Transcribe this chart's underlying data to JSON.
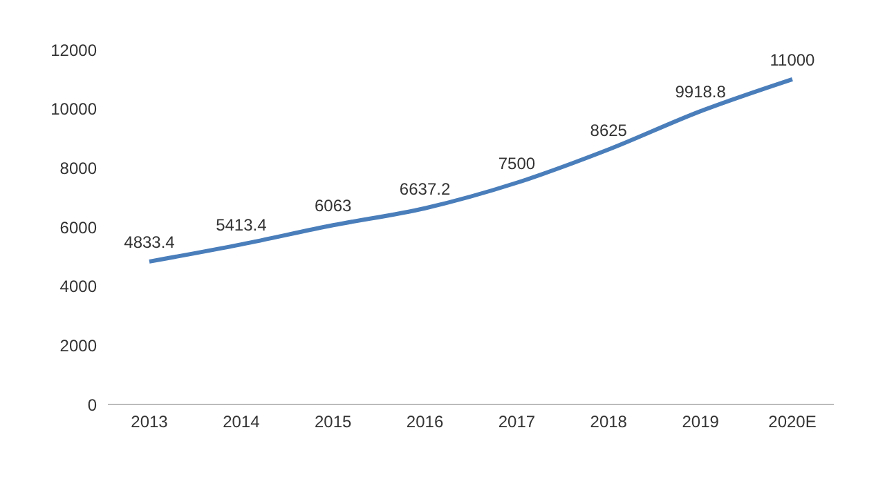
{
  "chart_data": {
    "type": "line",
    "categories": [
      "2013",
      "2014",
      "2015",
      "2016",
      "2017",
      "2018",
      "2019",
      "2020E"
    ],
    "series": [
      {
        "color": "#4a7ebb",
        "values": [
          4833.4,
          5413.4,
          6063,
          6637.2,
          7500,
          8625,
          9918.8,
          11000
        ]
      }
    ],
    "ylim": [
      0,
      12000
    ],
    "yticks": [
      0,
      2000,
      4000,
      6000,
      8000,
      10000,
      12000
    ],
    "grid": false,
    "legend": false,
    "marker": "none",
    "line_style": "solid",
    "data_labels": true
  }
}
